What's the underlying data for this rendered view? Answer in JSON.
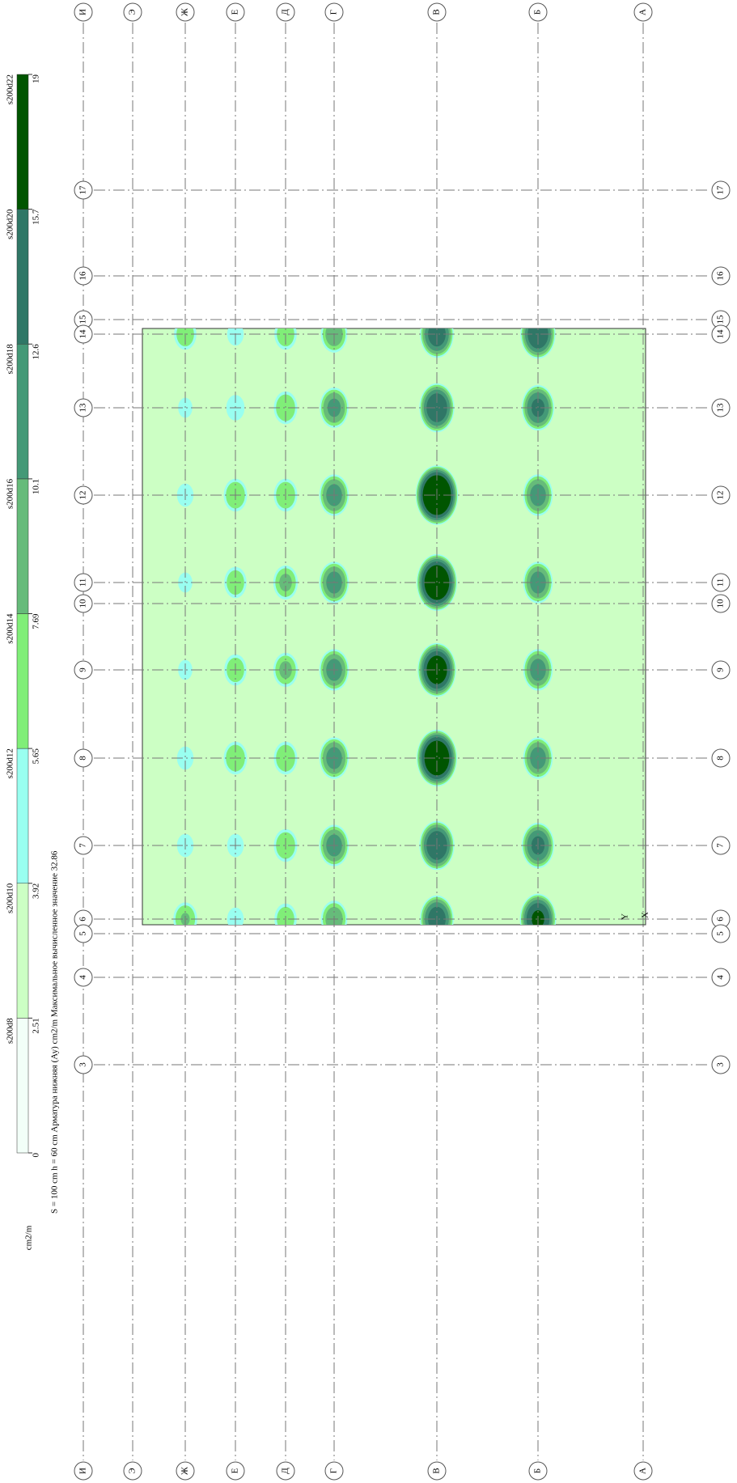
{
  "axes_letters": [
    "И",
    "Э",
    "Ж",
    "Е",
    "Д",
    "Г",
    "В",
    "Б",
    "А"
  ],
  "axes_numbers": [
    "17",
    "16",
    "15",
    "14",
    "13",
    "12",
    "11",
    "10",
    "9",
    "8",
    "7",
    "6",
    "5",
    "4",
    "3"
  ],
  "legend": {
    "unit": "cm2/m",
    "ticks": [
      0,
      2.51,
      3.92,
      5.65,
      7.69,
      10.1,
      12.6,
      15.7,
      19
    ],
    "labels": [
      "s200d8",
      "s200d10",
      "s200d12",
      "s200d14",
      "s200d16",
      "s200d18",
      "s200d20",
      "s200d22"
    ],
    "colors": [
      "#f2fff8",
      "#ccffc4",
      "#99fff0",
      "#80ee78",
      "#66bb7a",
      "#449977",
      "#2f7766",
      "#005500"
    ]
  },
  "caption": "S = 100 cm   h = 60 cm   Арматура нижняя (Ау) cm2/m   Максимальное вычисленное значение 32.86",
  "local_axes": {
    "x": "X",
    "y": "Y"
  },
  "reinforcement_peaks": [
    [
      null,
      null,
      null,
      null,
      null,
      null,
      null,
      null,
      null,
      null,
      null,
      null,
      null,
      null,
      null
    ],
    [
      null,
      null,
      null,
      null,
      null,
      null,
      null,
      null,
      null,
      null,
      null,
      null,
      null,
      null,
      null
    ],
    [
      null,
      null,
      null,
      7,
      4.5,
      5,
      4.5,
      null,
      4.5,
      5,
      5,
      7.7,
      null,
      null,
      null
    ],
    [
      null,
      null,
      null,
      5,
      5.5,
      7.5,
      7,
      null,
      7,
      7.5,
      5,
      5,
      null,
      null,
      null
    ],
    [
      null,
      null,
      null,
      7,
      7.5,
      7.5,
      8,
      null,
      8,
      7.5,
      7.5,
      7,
      null,
      null,
      null
    ],
    [
      null,
      null,
      null,
      9,
      10.5,
      11,
      11,
      null,
      11,
      11,
      11,
      9,
      null,
      null,
      null
    ],
    [
      null,
      null,
      null,
      14,
      15,
      22,
      20,
      null,
      18,
      20,
      15,
      14,
      null,
      null,
      null
    ],
    [
      null,
      null,
      null,
      15,
      13,
      11,
      11,
      null,
      11,
      11,
      13,
      16,
      null,
      null,
      null
    ],
    [
      null,
      null,
      null,
      null,
      null,
      null,
      null,
      null,
      null,
      null,
      null,
      null,
      null,
      null,
      null
    ]
  ]
}
